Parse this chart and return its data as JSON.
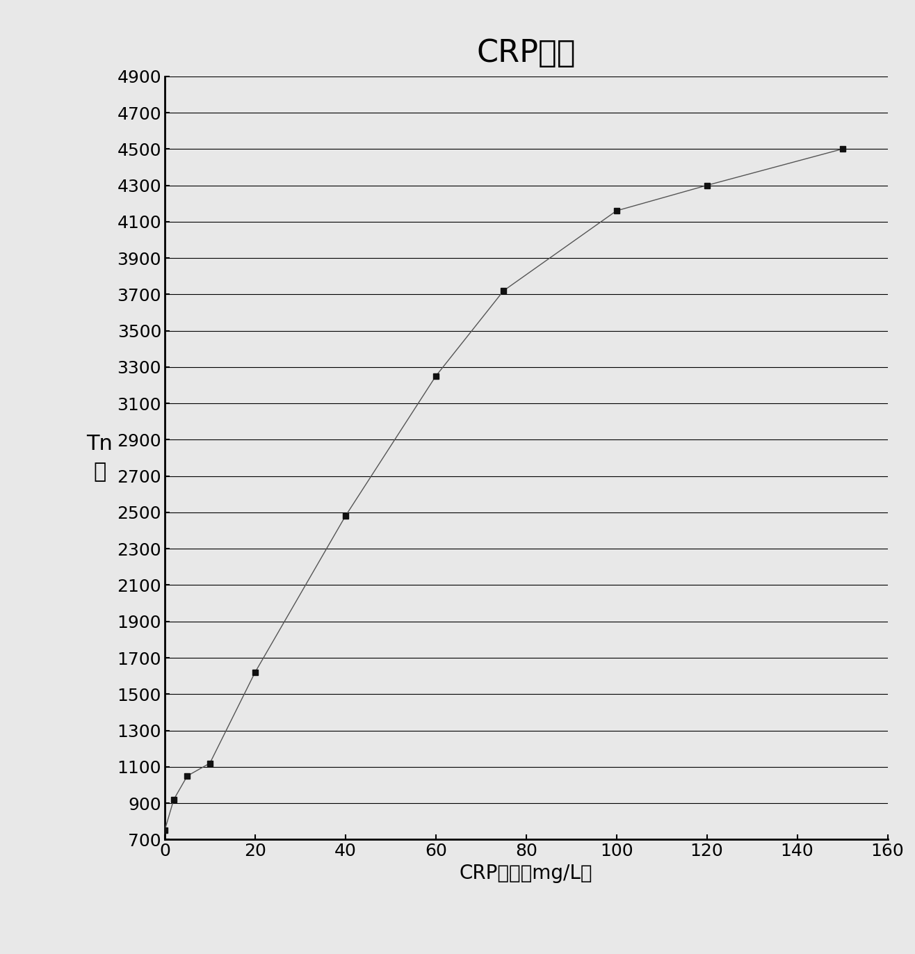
{
  "title": "CRP曲线",
  "xlabel": "CRP浓度（mg/L）",
  "ylabel_line1": "Tn",
  "ylabel_line2": "値",
  "x_data": [
    0,
    2,
    5,
    10,
    20,
    40,
    60,
    75,
    100,
    120,
    150
  ],
  "y_data": [
    750,
    920,
    1050,
    1120,
    1620,
    2480,
    3250,
    3720,
    4160,
    4300,
    4500
  ],
  "xlim": [
    0,
    160
  ],
  "ylim": [
    700,
    4900
  ],
  "yticks": [
    700,
    900,
    1100,
    1300,
    1500,
    1700,
    1900,
    2100,
    2300,
    2500,
    2700,
    2900,
    3100,
    3300,
    3500,
    3700,
    3900,
    4100,
    4300,
    4500,
    4700,
    4900
  ],
  "xticks": [
    0,
    20,
    40,
    60,
    80,
    100,
    120,
    140,
    160
  ],
  "line_color": "#555555",
  "marker_color": "#111111",
  "background_color": "#e8e8e8",
  "grid_color": "#000000",
  "title_fontsize": 32,
  "label_fontsize": 20,
  "tick_fontsize": 18,
  "ylabel_fontsize": 22
}
